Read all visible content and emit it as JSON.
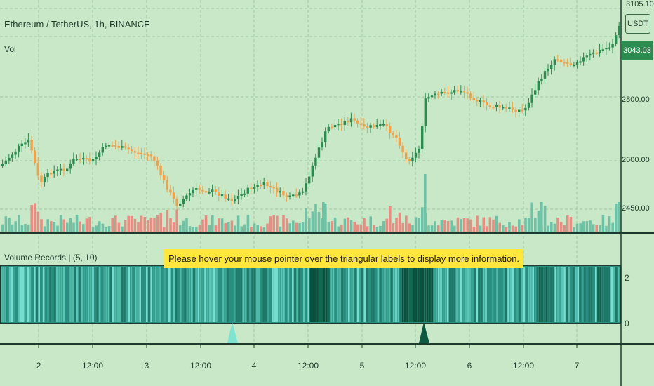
{
  "header": {
    "symbol_title": "Ethereum / TetherUS, 1h, BINANCE",
    "volume_label": "Vol"
  },
  "price_axis": {
    "ticks": [
      "2800.00",
      "2600.00",
      "2450.00"
    ],
    "currency_label": "USDT",
    "last_price": "3043.03",
    "top_partial": "3105.10"
  },
  "indicator": {
    "title": "Volume Records | (5, 10)",
    "tooltip": "Please hover your mouse pointer over the triangular labels to display more information.",
    "axis_ticks": [
      "2",
      "0"
    ]
  },
  "time_axis": {
    "ticks": [
      "2",
      "12:00",
      "3",
      "12:00",
      "4",
      "12:00",
      "5",
      "12:00",
      "6",
      "12:00",
      "7"
    ]
  },
  "colors": {
    "background": "#c9e8c8",
    "bull": "#2c8c4f",
    "bear": "#f0a24a",
    "vol_up": "#6fc2a6",
    "vol_down": "#e58f84",
    "marker_light": "#7fe3d2",
    "marker_dark": "#0d5a40"
  },
  "markers": [
    {
      "name": "triangle-marker-light",
      "color": "light"
    },
    {
      "name": "triangle-marker-dark",
      "color": "dark"
    }
  ]
}
